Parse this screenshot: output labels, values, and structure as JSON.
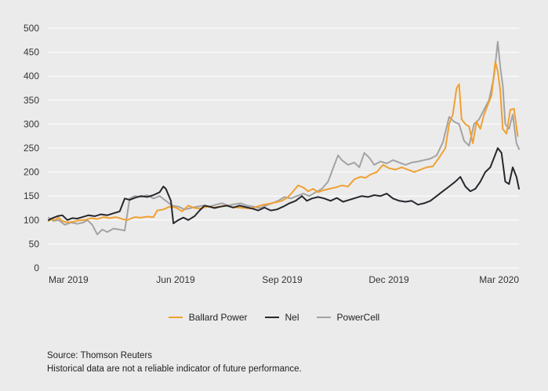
{
  "chart_data": {
    "type": "line",
    "x_ticks": [
      "Mar 2019",
      "Jun 2019",
      "Sep 2019",
      "Dec 2019",
      "Mar 2020"
    ],
    "x_range": [
      "2019-03-01",
      "2020-03-12"
    ],
    "y_ticks": [
      0,
      50,
      100,
      150,
      200,
      250,
      300,
      350,
      400,
      450,
      500
    ],
    "ylim": [
      0,
      500
    ],
    "grid": "horizontal",
    "legend_position": "bottom-center",
    "series": [
      {
        "name": "Ballard Power",
        "color": "#f0a030",
        "points": [
          [
            "2019-03-01",
            98
          ],
          [
            "2019-03-03",
            102
          ],
          [
            "2019-03-06",
            100
          ],
          [
            "2019-03-09",
            105
          ],
          [
            "2019-03-12",
            98
          ],
          [
            "2019-03-16",
            95
          ],
          [
            "2019-03-20",
            96
          ],
          [
            "2019-03-25",
            99
          ],
          [
            "2019-03-30",
            100
          ],
          [
            "2019-04-04",
            104
          ],
          [
            "2019-04-09",
            102
          ],
          [
            "2019-04-14",
            106
          ],
          [
            "2019-04-19",
            104
          ],
          [
            "2019-04-24",
            106
          ],
          [
            "2019-04-29",
            102
          ],
          [
            "2019-05-03",
            100
          ],
          [
            "2019-05-06",
            103
          ],
          [
            "2019-05-09",
            106
          ],
          [
            "2019-05-14",
            105
          ],
          [
            "2019-05-19",
            107
          ],
          [
            "2019-05-24",
            106
          ],
          [
            "2019-05-27",
            120
          ],
          [
            "2019-06-01",
            122
          ],
          [
            "2019-06-06",
            128
          ],
          [
            "2019-06-11",
            126
          ],
          [
            "2019-06-16",
            118
          ],
          [
            "2019-06-21",
            130
          ],
          [
            "2019-06-26",
            125
          ],
          [
            "2019-07-01",
            124
          ],
          [
            "2019-07-06",
            128
          ],
          [
            "2019-07-11",
            126
          ],
          [
            "2019-07-16",
            128
          ],
          [
            "2019-07-21",
            130
          ],
          [
            "2019-07-26",
            127
          ],
          [
            "2019-07-31",
            126
          ],
          [
            "2019-08-05",
            125
          ],
          [
            "2019-08-10",
            124
          ],
          [
            "2019-08-15",
            128
          ],
          [
            "2019-08-20",
            132
          ],
          [
            "2019-08-25",
            134
          ],
          [
            "2019-08-30",
            137
          ],
          [
            "2019-09-04",
            140
          ],
          [
            "2019-09-09",
            148
          ],
          [
            "2019-09-13",
            160
          ],
          [
            "2019-09-17",
            172
          ],
          [
            "2019-09-21",
            168
          ],
          [
            "2019-09-25",
            160
          ],
          [
            "2019-09-29",
            165
          ],
          [
            "2019-10-03",
            158
          ],
          [
            "2019-10-07",
            162
          ],
          [
            "2019-10-12",
            165
          ],
          [
            "2019-10-17",
            168
          ],
          [
            "2019-10-22",
            172
          ],
          [
            "2019-10-27",
            170
          ],
          [
            "2019-11-01",
            185
          ],
          [
            "2019-11-06",
            190
          ],
          [
            "2019-11-10",
            188
          ],
          [
            "2019-11-14",
            195
          ],
          [
            "2019-11-19",
            200
          ],
          [
            "2019-11-24",
            215
          ],
          [
            "2019-11-29",
            208
          ],
          [
            "2019-12-04",
            205
          ],
          [
            "2019-12-09",
            210
          ],
          [
            "2019-12-14",
            205
          ],
          [
            "2019-12-19",
            200
          ],
          [
            "2019-12-24",
            205
          ],
          [
            "2019-12-29",
            210
          ],
          [
            "2020-01-03",
            212
          ],
          [
            "2020-01-08",
            230
          ],
          [
            "2020-01-13",
            250
          ],
          [
            "2020-01-16",
            300
          ],
          [
            "2020-01-19",
            320
          ],
          [
            "2020-01-22",
            375
          ],
          [
            "2020-01-24",
            383
          ],
          [
            "2020-01-26",
            310
          ],
          [
            "2020-01-29",
            300
          ],
          [
            "2020-02-01",
            295
          ],
          [
            "2020-02-04",
            260
          ],
          [
            "2020-02-07",
            305
          ],
          [
            "2020-02-10",
            290
          ],
          [
            "2020-02-13",
            320
          ],
          [
            "2020-02-16",
            340
          ],
          [
            "2020-02-19",
            360
          ],
          [
            "2020-02-22",
            430
          ],
          [
            "2020-02-24",
            410
          ],
          [
            "2020-02-26",
            370
          ],
          [
            "2020-02-28",
            290
          ],
          [
            "2020-03-02",
            280
          ],
          [
            "2020-03-05",
            330
          ],
          [
            "2020-03-08",
            332
          ],
          [
            "2020-03-11",
            275
          ]
        ]
      },
      {
        "name": "Nel",
        "color": "#25282c",
        "points": [
          [
            "2019-03-01",
            100
          ],
          [
            "2019-03-04",
            104
          ],
          [
            "2019-03-08",
            108
          ],
          [
            "2019-03-12",
            110
          ],
          [
            "2019-03-16",
            100
          ],
          [
            "2019-03-20",
            104
          ],
          [
            "2019-03-24",
            103
          ],
          [
            "2019-03-28",
            106
          ],
          [
            "2019-04-02",
            110
          ],
          [
            "2019-04-07",
            108
          ],
          [
            "2019-04-12",
            112
          ],
          [
            "2019-04-17",
            110
          ],
          [
            "2019-04-22",
            114
          ],
          [
            "2019-04-27",
            118
          ],
          [
            "2019-05-01",
            145
          ],
          [
            "2019-05-05",
            142
          ],
          [
            "2019-05-09",
            146
          ],
          [
            "2019-05-14",
            150
          ],
          [
            "2019-05-19",
            148
          ],
          [
            "2019-05-24",
            152
          ],
          [
            "2019-05-29",
            158
          ],
          [
            "2019-06-01",
            170
          ],
          [
            "2019-06-03",
            165
          ],
          [
            "2019-06-07",
            140
          ],
          [
            "2019-06-09",
            93
          ],
          [
            "2019-06-13",
            100
          ],
          [
            "2019-06-17",
            105
          ],
          [
            "2019-06-21",
            100
          ],
          [
            "2019-06-26",
            108
          ],
          [
            "2019-06-30",
            120
          ],
          [
            "2019-07-04",
            130
          ],
          [
            "2019-07-08",
            128
          ],
          [
            "2019-07-12",
            125
          ],
          [
            "2019-07-17",
            128
          ],
          [
            "2019-07-22",
            130
          ],
          [
            "2019-07-27",
            126
          ],
          [
            "2019-08-01",
            130
          ],
          [
            "2019-08-06",
            127
          ],
          [
            "2019-08-11",
            124
          ],
          [
            "2019-08-16",
            120
          ],
          [
            "2019-08-21",
            126
          ],
          [
            "2019-08-26",
            120
          ],
          [
            "2019-08-31",
            122
          ],
          [
            "2019-09-05",
            128
          ],
          [
            "2019-09-10",
            135
          ],
          [
            "2019-09-15",
            140
          ],
          [
            "2019-09-20",
            150
          ],
          [
            "2019-09-24",
            140
          ],
          [
            "2019-09-28",
            145
          ],
          [
            "2019-10-03",
            148
          ],
          [
            "2019-10-08",
            145
          ],
          [
            "2019-10-13",
            140
          ],
          [
            "2019-10-18",
            146
          ],
          [
            "2019-10-23",
            138
          ],
          [
            "2019-10-28",
            142
          ],
          [
            "2019-11-02",
            146
          ],
          [
            "2019-11-07",
            150
          ],
          [
            "2019-11-12",
            148
          ],
          [
            "2019-11-17",
            152
          ],
          [
            "2019-11-22",
            150
          ],
          [
            "2019-11-27",
            155
          ],
          [
            "2019-12-02",
            145
          ],
          [
            "2019-12-07",
            140
          ],
          [
            "2019-12-12",
            138
          ],
          [
            "2019-12-17",
            140
          ],
          [
            "2019-12-22",
            132
          ],
          [
            "2019-12-27",
            135
          ],
          [
            "2020-01-01",
            140
          ],
          [
            "2020-01-06",
            150
          ],
          [
            "2020-01-11",
            160
          ],
          [
            "2020-01-16",
            170
          ],
          [
            "2020-01-21",
            180
          ],
          [
            "2020-01-25",
            190
          ],
          [
            "2020-01-29",
            170
          ],
          [
            "2020-02-02",
            160
          ],
          [
            "2020-02-06",
            165
          ],
          [
            "2020-02-10",
            180
          ],
          [
            "2020-02-14",
            200
          ],
          [
            "2020-02-18",
            210
          ],
          [
            "2020-02-21",
            230
          ],
          [
            "2020-02-24",
            250
          ],
          [
            "2020-02-27",
            240
          ],
          [
            "2020-03-01",
            180
          ],
          [
            "2020-03-04",
            175
          ],
          [
            "2020-03-07",
            210
          ],
          [
            "2020-03-10",
            190
          ],
          [
            "2020-03-12",
            165
          ]
        ]
      },
      {
        "name": "PowerCell",
        "color": "#a3a3a3",
        "points": [
          [
            "2019-03-01",
            105
          ],
          [
            "2019-03-05",
            98
          ],
          [
            "2019-03-09",
            100
          ],
          [
            "2019-03-14",
            90
          ],
          [
            "2019-03-19",
            95
          ],
          [
            "2019-03-24",
            92
          ],
          [
            "2019-03-29",
            95
          ],
          [
            "2019-04-01",
            100
          ],
          [
            "2019-04-05",
            90
          ],
          [
            "2019-04-09",
            70
          ],
          [
            "2019-04-13",
            80
          ],
          [
            "2019-04-17",
            75
          ],
          [
            "2019-04-22",
            82
          ],
          [
            "2019-04-27",
            80
          ],
          [
            "2019-05-01",
            78
          ],
          [
            "2019-05-05",
            145
          ],
          [
            "2019-05-09",
            150
          ],
          [
            "2019-05-14",
            148
          ],
          [
            "2019-05-19",
            152
          ],
          [
            "2019-05-24",
            145
          ],
          [
            "2019-05-29",
            150
          ],
          [
            "2019-06-03",
            140
          ],
          [
            "2019-06-08",
            130
          ],
          [
            "2019-06-13",
            128
          ],
          [
            "2019-06-18",
            122
          ],
          [
            "2019-06-23",
            125
          ],
          [
            "2019-06-28",
            128
          ],
          [
            "2019-07-03",
            130
          ],
          [
            "2019-07-08",
            128
          ],
          [
            "2019-07-13",
            132
          ],
          [
            "2019-07-18",
            135
          ],
          [
            "2019-07-23",
            130
          ],
          [
            "2019-07-28",
            133
          ],
          [
            "2019-08-02",
            135
          ],
          [
            "2019-08-07",
            130
          ],
          [
            "2019-08-12",
            128
          ],
          [
            "2019-08-17",
            125
          ],
          [
            "2019-08-22",
            130
          ],
          [
            "2019-08-27",
            135
          ],
          [
            "2019-09-01",
            140
          ],
          [
            "2019-09-06",
            148
          ],
          [
            "2019-09-11",
            145
          ],
          [
            "2019-09-16",
            150
          ],
          [
            "2019-09-21",
            155
          ],
          [
            "2019-09-26",
            150
          ],
          [
            "2019-10-01",
            158
          ],
          [
            "2019-10-06",
            165
          ],
          [
            "2019-10-11",
            180
          ],
          [
            "2019-10-16",
            215
          ],
          [
            "2019-10-19",
            235
          ],
          [
            "2019-10-22",
            225
          ],
          [
            "2019-10-27",
            215
          ],
          [
            "2019-11-01",
            220
          ],
          [
            "2019-11-05",
            210
          ],
          [
            "2019-11-09",
            240
          ],
          [
            "2019-11-13",
            230
          ],
          [
            "2019-11-17",
            215
          ],
          [
            "2019-11-22",
            222
          ],
          [
            "2019-11-27",
            218
          ],
          [
            "2019-12-02",
            225
          ],
          [
            "2019-12-07",
            220
          ],
          [
            "2019-12-12",
            215
          ],
          [
            "2019-12-17",
            220
          ],
          [
            "2019-12-22",
            222
          ],
          [
            "2019-12-27",
            225
          ],
          [
            "2020-01-01",
            228
          ],
          [
            "2020-01-06",
            235
          ],
          [
            "2020-01-11",
            262
          ],
          [
            "2020-01-16",
            315
          ],
          [
            "2020-01-20",
            305
          ],
          [
            "2020-01-24",
            300
          ],
          [
            "2020-01-28",
            265
          ],
          [
            "2020-02-01",
            255
          ],
          [
            "2020-02-05",
            300
          ],
          [
            "2020-02-09",
            310
          ],
          [
            "2020-02-13",
            330
          ],
          [
            "2020-02-17",
            350
          ],
          [
            "2020-02-21",
            400
          ],
          [
            "2020-02-24",
            472
          ],
          [
            "2020-02-26",
            420
          ],
          [
            "2020-02-28",
            380
          ],
          [
            "2020-03-01",
            300
          ],
          [
            "2020-03-04",
            290
          ],
          [
            "2020-03-07",
            320
          ],
          [
            "2020-03-10",
            260
          ],
          [
            "2020-03-12",
            248
          ]
        ]
      }
    ]
  },
  "footnote": {
    "source": "Source: Thomson Reuters",
    "disclaimer": "Historical data are not a reliable indicator of future performance."
  }
}
